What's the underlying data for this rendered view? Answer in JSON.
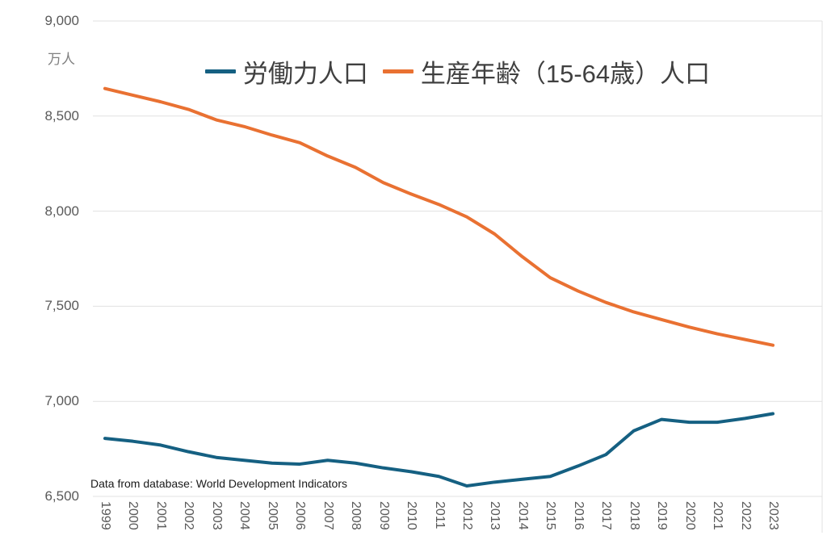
{
  "unit_label": "万人",
  "colors": {
    "labor_force": "#156082",
    "working_age": "#E97132",
    "grid": "#e1e1e1",
    "axis_text": "#595959",
    "legend_text": "#404040"
  },
  "footnote": "Data from database: World Development Indicators",
  "chart_data": {
    "type": "line",
    "title": "",
    "ylabel": "万人",
    "xlabel": "",
    "ylim": [
      6500,
      9000
    ],
    "yticks": [
      6500,
      7000,
      7500,
      8000,
      8500,
      9000
    ],
    "grid": true,
    "legend_position": "top-center",
    "annotation": "Data from database: World Development Indicators",
    "x": [
      1999,
      2000,
      2001,
      2002,
      2003,
      2004,
      2005,
      2006,
      2007,
      2008,
      2009,
      2010,
      2011,
      2012,
      2013,
      2014,
      2015,
      2016,
      2017,
      2018,
      2019,
      2020,
      2021,
      2022,
      2023
    ],
    "series": [
      {
        "name": "労働力人口",
        "color_key": "labor_force",
        "values": [
          6805,
          6790,
          6770,
          6735,
          6705,
          6690,
          6675,
          6670,
          6690,
          6675,
          6650,
          6630,
          6605,
          6555,
          6575,
          6590,
          6605,
          6660,
          6720,
          6845,
          6905,
          6890,
          6890,
          6910,
          6935
        ]
      },
      {
        "name": "生産年齢（15-64歳）人口",
        "color_key": "working_age",
        "values": [
          8645,
          8610,
          8575,
          8535,
          8480,
          8445,
          8400,
          8360,
          8290,
          8230,
          8150,
          8090,
          8035,
          7970,
          7880,
          7760,
          7650,
          7580,
          7520,
          7470,
          7430,
          7390,
          7355,
          7325,
          7295
        ]
      }
    ]
  }
}
